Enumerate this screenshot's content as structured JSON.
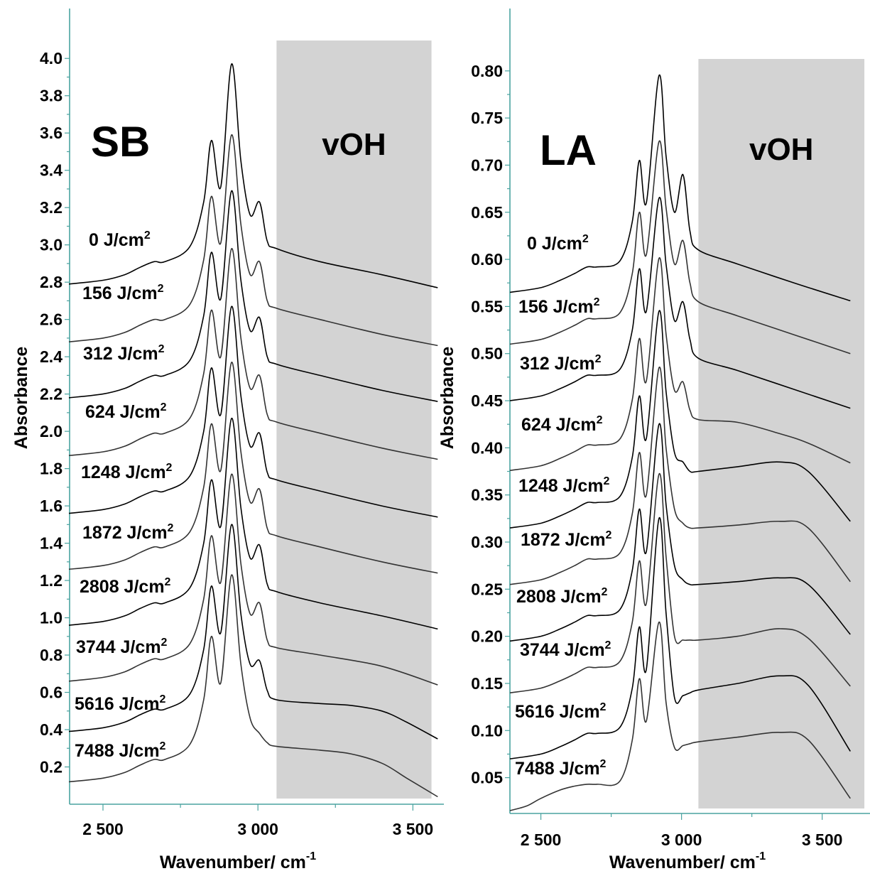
{
  "chart_data": [
    {
      "type": "line",
      "panel_label": "SB",
      "band_label": "vOH",
      "band_range": [
        3060,
        3560
      ],
      "xlabel": "Wavenumber/ cm",
      "xlabel_sup": "-1",
      "ylabel": "Absorbance",
      "xlim": [
        2390,
        3600
      ],
      "ylim": [
        0.0,
        4.1
      ],
      "x_ticks": [
        {
          "value": 2500,
          "label": "2 500"
        },
        {
          "value": 3000,
          "label": "3 000"
        },
        {
          "value": 3500,
          "label": "3 500"
        }
      ],
      "y_ticks": [
        "0.2",
        "0.4",
        "0.6",
        "0.8",
        "1.0",
        "1.2",
        "1.4",
        "1.6",
        "1.8",
        "2.0",
        "2.2",
        "2.4",
        "2.6",
        "2.8",
        "3.0",
        "3.2",
        "3.4",
        "3.6",
        "3.8",
        "4.0"
      ],
      "series": [
        {
          "name": "0 J/cm",
          "sup": "2",
          "color": "#000000",
          "x": [
            2390,
            2500,
            2570,
            2620,
            2665,
            2700,
            2780,
            2825,
            2850,
            2880,
            2915,
            2945,
            2975,
            3005,
            3030,
            3060,
            3200,
            3400,
            3580
          ],
          "y": [
            2.79,
            2.81,
            2.84,
            2.88,
            2.91,
            2.91,
            2.99,
            3.23,
            3.56,
            3.31,
            3.97,
            3.45,
            3.16,
            3.23,
            3.02,
            2.98,
            2.91,
            2.84,
            2.77
          ]
        },
        {
          "name": "156 J/cm",
          "sup": "2",
          "color": "#333333",
          "x": [
            2390,
            2500,
            2570,
            2620,
            2665,
            2700,
            2780,
            2825,
            2850,
            2880,
            2915,
            2945,
            2975,
            3005,
            3030,
            3060,
            3200,
            3400,
            3580
          ],
          "y": [
            2.48,
            2.5,
            2.53,
            2.57,
            2.6,
            2.6,
            2.68,
            2.92,
            3.26,
            3.01,
            3.59,
            3.11,
            2.84,
            2.91,
            2.7,
            2.66,
            2.6,
            2.52,
            2.46
          ]
        },
        {
          "name": "312 J/cm",
          "sup": "2",
          "color": "#000000",
          "x": [
            2390,
            2500,
            2570,
            2620,
            2665,
            2700,
            2780,
            2825,
            2850,
            2880,
            2915,
            2945,
            2975,
            3005,
            3030,
            3060,
            3200,
            3400,
            3580
          ],
          "y": [
            2.18,
            2.2,
            2.23,
            2.27,
            2.3,
            2.3,
            2.38,
            2.62,
            2.96,
            2.71,
            3.29,
            2.81,
            2.54,
            2.61,
            2.4,
            2.36,
            2.3,
            2.22,
            2.16
          ]
        },
        {
          "name": "624 J/cm",
          "sup": "2",
          "color": "#333333",
          "x": [
            2390,
            2500,
            2570,
            2620,
            2665,
            2700,
            2780,
            2825,
            2850,
            2880,
            2915,
            2945,
            2975,
            3005,
            3030,
            3060,
            3200,
            3400,
            3580
          ],
          "y": [
            1.87,
            1.89,
            1.92,
            1.96,
            1.99,
            1.99,
            2.07,
            2.31,
            2.65,
            2.4,
            2.98,
            2.5,
            2.23,
            2.3,
            2.09,
            2.05,
            1.99,
            1.91,
            1.85
          ]
        },
        {
          "name": "1248 J/cm",
          "sup": "2",
          "color": "#000000",
          "x": [
            2390,
            2500,
            2570,
            2620,
            2665,
            2700,
            2780,
            2825,
            2850,
            2880,
            2915,
            2945,
            2975,
            3005,
            3030,
            3060,
            3200,
            3400,
            3580
          ],
          "y": [
            1.56,
            1.58,
            1.61,
            1.65,
            1.68,
            1.68,
            1.76,
            2.0,
            2.34,
            2.09,
            2.67,
            2.19,
            1.92,
            1.99,
            1.78,
            1.74,
            1.68,
            1.6,
            1.54
          ]
        },
        {
          "name": "1872 J/cm",
          "sup": "2",
          "color": "#333333",
          "x": [
            2390,
            2500,
            2570,
            2620,
            2665,
            2700,
            2780,
            2825,
            2850,
            2880,
            2915,
            2945,
            2975,
            3005,
            3030,
            3060,
            3200,
            3400,
            3580
          ],
          "y": [
            1.26,
            1.28,
            1.31,
            1.35,
            1.38,
            1.38,
            1.46,
            1.7,
            2.04,
            1.79,
            2.37,
            1.89,
            1.62,
            1.69,
            1.48,
            1.44,
            1.38,
            1.3,
            1.24
          ]
        },
        {
          "name": "2808 J/cm",
          "sup": "2",
          "color": "#000000",
          "x": [
            2390,
            2500,
            2570,
            2620,
            2665,
            2700,
            2780,
            2825,
            2850,
            2880,
            2915,
            2945,
            2975,
            3005,
            3030,
            3060,
            3200,
            3400,
            3580
          ],
          "y": [
            0.96,
            0.98,
            1.01,
            1.05,
            1.08,
            1.08,
            1.16,
            1.4,
            1.74,
            1.49,
            2.07,
            1.59,
            1.32,
            1.39,
            1.18,
            1.14,
            1.08,
            1.01,
            0.94
          ]
        },
        {
          "name": "3744 J/cm",
          "sup": "2",
          "color": "#333333",
          "x": [
            2390,
            2500,
            2570,
            2620,
            2665,
            2700,
            2780,
            2825,
            2850,
            2880,
            2915,
            2945,
            2975,
            3005,
            3030,
            3060,
            3200,
            3400,
            3580
          ],
          "y": [
            0.66,
            0.68,
            0.71,
            0.75,
            0.78,
            0.78,
            0.86,
            1.1,
            1.44,
            1.19,
            1.77,
            1.29,
            1.02,
            1.08,
            0.88,
            0.84,
            0.8,
            0.74,
            0.64
          ]
        },
        {
          "name": "5616 J/cm",
          "sup": "2",
          "color": "#000000",
          "x": [
            2390,
            2500,
            2570,
            2620,
            2665,
            2700,
            2780,
            2825,
            2850,
            2880,
            2915,
            2945,
            2975,
            3005,
            3030,
            3060,
            3200,
            3300,
            3400,
            3480,
            3580
          ],
          "y": [
            0.39,
            0.41,
            0.44,
            0.48,
            0.51,
            0.51,
            0.59,
            0.83,
            1.17,
            0.92,
            1.5,
            1.02,
            0.75,
            0.77,
            0.61,
            0.56,
            0.54,
            0.53,
            0.5,
            0.44,
            0.35
          ]
        },
        {
          "name": "7488 J/cm",
          "sup": "2",
          "color": "#333333",
          "x": [
            2390,
            2500,
            2570,
            2620,
            2665,
            2700,
            2780,
            2825,
            2850,
            2880,
            2915,
            2945,
            2975,
            3005,
            3030,
            3060,
            3200,
            3300,
            3400,
            3480,
            3580
          ],
          "y": [
            0.12,
            0.14,
            0.17,
            0.21,
            0.24,
            0.24,
            0.32,
            0.56,
            0.9,
            0.65,
            1.23,
            0.75,
            0.46,
            0.38,
            0.33,
            0.31,
            0.29,
            0.27,
            0.22,
            0.14,
            0.04
          ]
        }
      ]
    },
    {
      "type": "line",
      "panel_label": "LA",
      "band_label": "vOH",
      "band_range": [
        3060,
        3650
      ],
      "xlabel": "Wavenumber/ cm",
      "xlabel_sup": "-1",
      "ylabel": "Absorbance",
      "xlim": [
        2390,
        3670
      ],
      "ylim": [
        0.012,
        0.83
      ],
      "x_ticks": [
        {
          "value": 2500,
          "label": "2 500"
        },
        {
          "value": 3000,
          "label": "3 000"
        },
        {
          "value": 3500,
          "label": "3 500"
        }
      ],
      "y_ticks": [
        "0.05",
        "0.10",
        "0.15",
        "0.20",
        "0.25",
        "0.30",
        "0.35",
        "0.40",
        "0.45",
        "0.50",
        "0.55",
        "0.60",
        "0.65",
        "0.70",
        "0.75",
        "0.80"
      ],
      "series": [
        {
          "name": "0 J/cm",
          "sup": "2",
          "color": "#000000",
          "x": [
            2390,
            2500,
            2570,
            2620,
            2665,
            2700,
            2780,
            2825,
            2850,
            2875,
            2920,
            2945,
            2975,
            3005,
            3030,
            3060,
            3200,
            3400,
            3600
          ],
          "y": [
            0.565,
            0.57,
            0.578,
            0.585,
            0.592,
            0.592,
            0.598,
            0.64,
            0.705,
            0.66,
            0.795,
            0.71,
            0.65,
            0.69,
            0.63,
            0.61,
            0.595,
            0.575,
            0.556
          ]
        },
        {
          "name": "156 J/cm",
          "sup": "2",
          "color": "#333333",
          "x": [
            2390,
            2500,
            2570,
            2620,
            2665,
            2700,
            2780,
            2825,
            2850,
            2875,
            2920,
            2945,
            2975,
            3005,
            3030,
            3060,
            3200,
            3400,
            3600
          ],
          "y": [
            0.51,
            0.515,
            0.523,
            0.53,
            0.537,
            0.537,
            0.543,
            0.585,
            0.65,
            0.605,
            0.725,
            0.655,
            0.595,
            0.62,
            0.575,
            0.555,
            0.54,
            0.52,
            0.5
          ]
        },
        {
          "name": "312 J/cm",
          "sup": "2",
          "color": "#000000",
          "x": [
            2390,
            2500,
            2570,
            2620,
            2665,
            2700,
            2780,
            2825,
            2850,
            2875,
            2920,
            2945,
            2975,
            3005,
            3030,
            3060,
            3200,
            3400,
            3600
          ],
          "y": [
            0.45,
            0.455,
            0.463,
            0.47,
            0.477,
            0.477,
            0.483,
            0.525,
            0.59,
            0.545,
            0.665,
            0.595,
            0.535,
            0.555,
            0.515,
            0.495,
            0.482,
            0.462,
            0.442
          ]
        },
        {
          "name": "624 J/cm",
          "sup": "2",
          "color": "#333333",
          "x": [
            2390,
            2500,
            2570,
            2620,
            2665,
            2700,
            2780,
            2825,
            2850,
            2875,
            2920,
            2945,
            2975,
            3005,
            3030,
            3060,
            3200,
            3350,
            3450,
            3600
          ],
          "y": [
            0.376,
            0.381,
            0.389,
            0.396,
            0.403,
            0.403,
            0.409,
            0.451,
            0.516,
            0.471,
            0.601,
            0.521,
            0.461,
            0.47,
            0.44,
            0.43,
            0.427,
            0.415,
            0.405,
            0.384
          ]
        },
        {
          "name": "1248 J/cm",
          "sup": "2",
          "color": "#000000",
          "x": [
            2390,
            2500,
            2570,
            2620,
            2665,
            2700,
            2780,
            2825,
            2850,
            2875,
            2920,
            2945,
            2975,
            3005,
            3030,
            3060,
            3200,
            3350,
            3450,
            3600
          ],
          "y": [
            0.315,
            0.32,
            0.328,
            0.335,
            0.342,
            0.342,
            0.348,
            0.39,
            0.455,
            0.41,
            0.545,
            0.46,
            0.395,
            0.385,
            0.375,
            0.375,
            0.38,
            0.385,
            0.375,
            0.322
          ]
        },
        {
          "name": "1872 J/cm",
          "sup": "2",
          "color": "#333333",
          "x": [
            2390,
            2500,
            2570,
            2620,
            2665,
            2700,
            2780,
            2825,
            2850,
            2875,
            2920,
            2945,
            2975,
            3005,
            3030,
            3060,
            3200,
            3350,
            3450,
            3600
          ],
          "y": [
            0.255,
            0.26,
            0.268,
            0.275,
            0.282,
            0.282,
            0.288,
            0.33,
            0.395,
            0.35,
            0.485,
            0.4,
            0.335,
            0.32,
            0.315,
            0.315,
            0.318,
            0.322,
            0.315,
            0.258
          ]
        },
        {
          "name": "2808 J/cm",
          "sup": "2",
          "color": "#000000",
          "x": [
            2390,
            2500,
            2570,
            2620,
            2665,
            2700,
            2780,
            2825,
            2850,
            2875,
            2920,
            2945,
            2975,
            3005,
            3030,
            3060,
            3200,
            3350,
            3450,
            3600
          ],
          "y": [
            0.195,
            0.2,
            0.208,
            0.215,
            0.222,
            0.222,
            0.228,
            0.27,
            0.335,
            0.29,
            0.425,
            0.34,
            0.275,
            0.26,
            0.255,
            0.255,
            0.258,
            0.262,
            0.255,
            0.202
          ]
        },
        {
          "name": "3744 J/cm",
          "sup": "2",
          "color": "#333333",
          "x": [
            2390,
            2500,
            2570,
            2620,
            2665,
            2700,
            2780,
            2825,
            2850,
            2875,
            2920,
            2945,
            2975,
            3005,
            3030,
            3060,
            3200,
            3350,
            3450,
            3600
          ],
          "y": [
            0.14,
            0.145,
            0.153,
            0.16,
            0.167,
            0.167,
            0.173,
            0.215,
            0.28,
            0.235,
            0.372,
            0.285,
            0.2,
            0.196,
            0.196,
            0.196,
            0.2,
            0.208,
            0.198,
            0.147
          ]
        },
        {
          "name": "5616 J/cm",
          "sup": "2",
          "color": "#000000",
          "x": [
            2390,
            2500,
            2570,
            2620,
            2665,
            2700,
            2780,
            2825,
            2850,
            2875,
            2920,
            2945,
            2975,
            3005,
            3030,
            3060,
            3200,
            3350,
            3450,
            3600
          ],
          "y": [
            0.07,
            0.075,
            0.083,
            0.09,
            0.097,
            0.097,
            0.103,
            0.145,
            0.21,
            0.165,
            0.325,
            0.225,
            0.135,
            0.137,
            0.14,
            0.143,
            0.15,
            0.158,
            0.148,
            0.078
          ]
        },
        {
          "name": "7488 J/cm",
          "sup": "2",
          "color": "#333333",
          "x": [
            2390,
            2450,
            2500,
            2570,
            2620,
            2665,
            2700,
            2780,
            2825,
            2850,
            2875,
            2920,
            2945,
            2975,
            3005,
            3030,
            3060,
            3200,
            3350,
            3450,
            3600
          ],
          "y": [
            0.015,
            0.02,
            0.028,
            0.037,
            0.041,
            0.043,
            0.043,
            0.046,
            0.09,
            0.155,
            0.11,
            0.215,
            0.13,
            0.082,
            0.084,
            0.086,
            0.088,
            0.093,
            0.098,
            0.09,
            0.028
          ]
        }
      ]
    }
  ]
}
